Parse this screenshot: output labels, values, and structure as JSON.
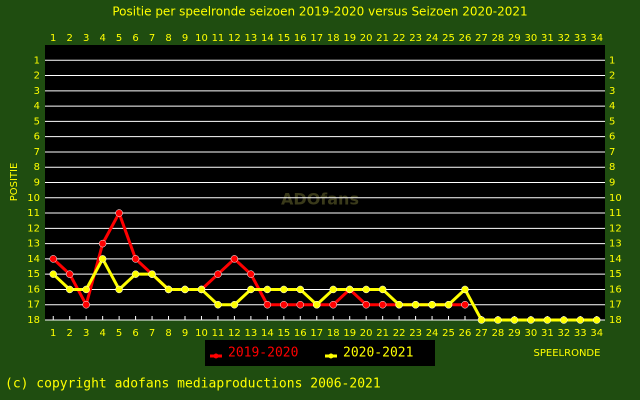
{
  "chart_data": {
    "type": "line",
    "title": "Positie per speelronde seizoen 2019-2020 versus Seizoen 2020-2021",
    "y_label": "POSITIE",
    "x_label": "SPEELRONDE",
    "watermark": "ADOfans",
    "footer": "(c) copyright adofans mediaproductions 2006-2021",
    "x": [
      1,
      2,
      3,
      4,
      5,
      6,
      7,
      8,
      9,
      10,
      11,
      12,
      13,
      14,
      15,
      16,
      17,
      18,
      19,
      20,
      21,
      22,
      23,
      24,
      25,
      26,
      27,
      28,
      29,
      30,
      31,
      32,
      33,
      34
    ],
    "series": [
      {
        "name": "2019-2020",
        "color": "#ff0000",
        "values": [
          14,
          15,
          17,
          13,
          11,
          14,
          15,
          16,
          16,
          16,
          15,
          14,
          15,
          17,
          17,
          17,
          17,
          17,
          16,
          17,
          17,
          17,
          17,
          17,
          17,
          17,
          null,
          null,
          null,
          null,
          null,
          null,
          null,
          null
        ]
      },
      {
        "name": "2020-2021",
        "color": "#ffff00",
        "values": [
          15,
          16,
          16,
          14,
          16,
          15,
          15,
          16,
          16,
          16,
          17,
          17,
          16,
          16,
          16,
          16,
          17,
          16,
          16,
          16,
          16,
          17,
          17,
          17,
          17,
          16,
          18,
          18,
          18,
          18,
          18,
          18,
          18,
          18
        ]
      }
    ],
    "xlim": [
      0.5,
      34.5
    ],
    "xticks": [
      1,
      2,
      3,
      4,
      5,
      6,
      7,
      8,
      9,
      10,
      11,
      12,
      13,
      14,
      15,
      16,
      17,
      18,
      19,
      20,
      21,
      22,
      23,
      24,
      25,
      26,
      27,
      28,
      29,
      30,
      31,
      32,
      33,
      34
    ],
    "ylim": [
      0,
      18
    ],
    "y_inverted": true,
    "yticks": [
      1,
      2,
      3,
      4,
      5,
      6,
      7,
      8,
      9,
      10,
      11,
      12,
      13,
      14,
      15,
      16,
      17,
      18
    ],
    "grid": true
  }
}
